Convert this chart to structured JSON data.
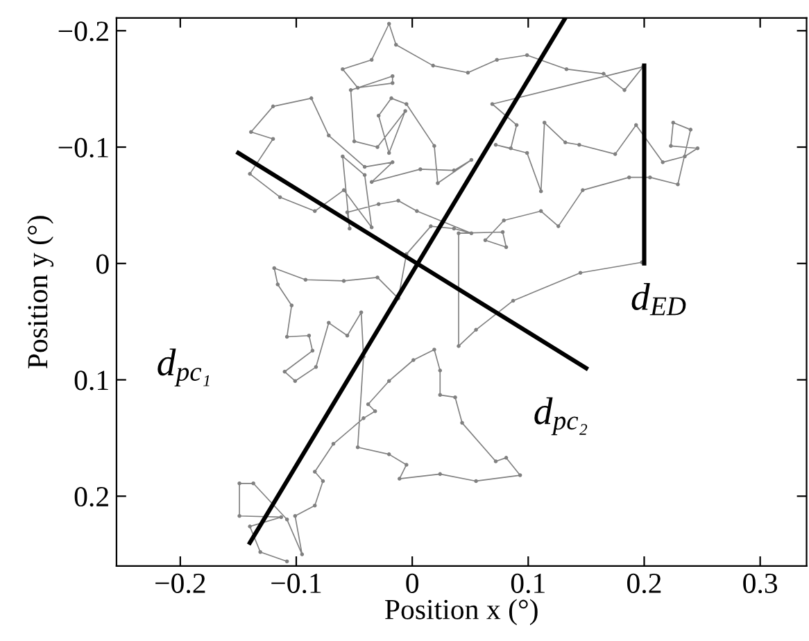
{
  "chart_data": {
    "type": "line",
    "xlabel": "Position x (°)",
    "ylabel": "Position y (°)",
    "xlim": [
      -0.255,
      0.34
    ],
    "ylim": [
      0.26,
      -0.211
    ],
    "xticks": [
      {
        "value": -0.2,
        "label": "−0.2"
      },
      {
        "value": -0.1,
        "label": "−0.1"
      },
      0,
      0.1,
      0.2,
      0.3
    ],
    "yticks": [
      {
        "value": -0.2,
        "label": "−0.2"
      },
      {
        "value": -0.1,
        "label": "−0.1"
      },
      0,
      0.1,
      0.2
    ],
    "grid": false,
    "legend": false,
    "annotations": [
      "d$_{ED}$",
      "d$_{pc₁}$",
      "d$_{pc₂}$"
    ],
    "series": [
      {
        "color": "#808080",
        "marker": "circle",
        "x": [
          -0.108,
          -0.131,
          -0.14,
          -0.113,
          -0.149,
          -0.149,
          -0.137,
          -0.108,
          -0.095,
          -0.101,
          -0.084,
          -0.077,
          -0.084,
          -0.068,
          -0.042,
          -0.032,
          -0.038,
          -0.02,
          0.001,
          0.019,
          0.024,
          0.024,
          0.037,
          0.043,
          0.072,
          0.081,
          0.093,
          0.055,
          0.024,
          -0.011,
          -0.005,
          -0.02,
          -0.047,
          -0.042,
          -0.044,
          -0.056,
          -0.072,
          -0.083,
          -0.101,
          -0.11,
          -0.086,
          -0.089,
          -0.108,
          -0.104,
          -0.116,
          -0.119,
          -0.092,
          -0.059,
          -0.03,
          -0.012,
          -0.005,
          0.016,
          0.036,
          0.051,
          0.004,
          -0.012,
          -0.029,
          -0.056,
          -0.054,
          -0.06,
          -0.041,
          -0.035,
          -0.059,
          -0.084,
          -0.114,
          -0.14,
          -0.12,
          -0.139,
          -0.12,
          -0.087,
          -0.072,
          -0.041,
          -0.017,
          -0.035,
          0.007,
          0.036,
          0.051,
          0.022,
          0.019,
          -0.005,
          -0.018,
          -0.029,
          -0.02,
          -0.006,
          -0.03,
          -0.05,
          -0.053,
          -0.017,
          -0.017,
          -0.047,
          -0.06,
          -0.035,
          -0.02,
          -0.014,
          0.018,
          0.048,
          0.073,
          0.099,
          0.133,
          0.165,
          0.183,
          0.199,
          0.069,
          0.09,
          0.085,
          0.072,
          0.099,
          0.111,
          0.114,
          0.132,
          0.144,
          0.175,
          0.193,
          0.216,
          0.235,
          0.246,
          0.223,
          0.225,
          0.24,
          0.229,
          0.205,
          0.187,
          0.147,
          0.126,
          0.111,
          0.079,
          0.063,
          0.081,
          0.078,
          0.04,
          0.04,
          0.055,
          0.087,
          0.145,
          0.198
        ],
        "values": [
          0.256,
          0.248,
          0.226,
          0.218,
          0.217,
          0.189,
          0.189,
          0.22,
          0.25,
          0.217,
          0.208,
          0.187,
          0.179,
          0.155,
          0.133,
          0.127,
          0.121,
          0.101,
          0.083,
          0.074,
          0.092,
          0.113,
          0.115,
          0.137,
          0.17,
          0.167,
          0.182,
          0.187,
          0.181,
          0.185,
          0.173,
          0.164,
          0.158,
          0.08,
          0.042,
          0.062,
          0.051,
          0.089,
          0.101,
          0.093,
          0.075,
          0.062,
          0.063,
          0.036,
          0.018,
          0.004,
          0.014,
          0.015,
          0.012,
          0.03,
          -0.008,
          -0.032,
          -0.03,
          -0.026,
          -0.045,
          -0.054,
          -0.051,
          -0.044,
          -0.03,
          -0.092,
          -0.076,
          -0.031,
          -0.063,
          -0.045,
          -0.057,
          -0.077,
          -0.107,
          -0.113,
          -0.135,
          -0.142,
          -0.11,
          -0.083,
          -0.087,
          -0.07,
          -0.081,
          -0.08,
          -0.089,
          -0.069,
          -0.101,
          -0.137,
          -0.142,
          -0.127,
          -0.095,
          -0.131,
          -0.1,
          -0.105,
          -0.149,
          -0.161,
          -0.155,
          -0.151,
          -0.167,
          -0.175,
          -0.206,
          -0.188,
          -0.17,
          -0.164,
          -0.175,
          -0.179,
          -0.167,
          -0.163,
          -0.149,
          -0.169,
          -0.137,
          -0.119,
          -0.099,
          -0.102,
          -0.095,
          -0.062,
          -0.121,
          -0.104,
          -0.102,
          -0.094,
          -0.119,
          -0.087,
          -0.092,
          -0.099,
          -0.101,
          -0.121,
          -0.115,
          -0.068,
          -0.074,
          -0.074,
          -0.063,
          -0.032,
          -0.045,
          -0.037,
          -0.02,
          -0.014,
          -0.027,
          -0.026,
          0.071,
          0.057,
          0.032,
          0.008,
          -0.001
        ]
      },
      {
        "color": "#000000",
        "marker": "none",
        "x": [
          -0.14,
          0.132
        ],
        "values": [
          0.24,
          -0.211
        ]
      },
      {
        "color": "#000000",
        "marker": "none",
        "x": [
          -0.15,
          0.15
        ],
        "values": [
          -0.095,
          0.09
        ]
      },
      {
        "color": "#000000",
        "marker": "none",
        "x": [
          0.2,
          0.2
        ],
        "values": [
          0.0,
          -0.17
        ]
      }
    ]
  }
}
